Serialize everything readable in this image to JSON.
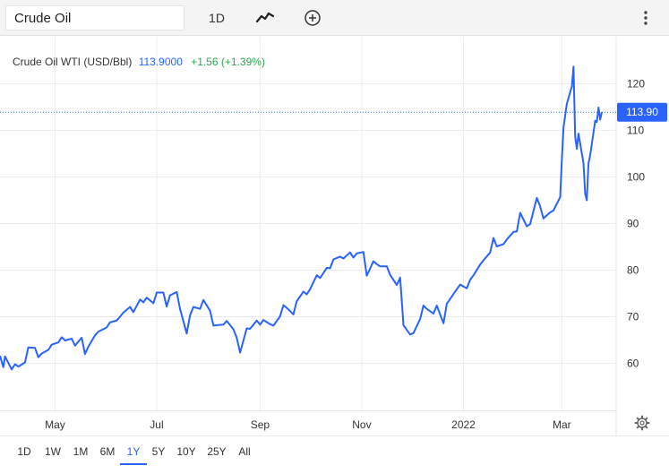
{
  "toolbar": {
    "symbol_value": "Crude Oil",
    "interval_label": "1D",
    "chart_style_icon": "line-chart-icon",
    "compare_icon": "plus-circle-icon",
    "menu_icon": "more-vertical-icon"
  },
  "legend": {
    "name": "Crude Oil WTI (USD/Bbl)",
    "price": "113.9000",
    "change": "+1.56 (+1.39%)"
  },
  "price_tag": "113.90",
  "settings_icon": "gear-icon",
  "ranges": [
    "1D",
    "1W",
    "1M",
    "6M",
    "1Y",
    "5Y",
    "10Y",
    "25Y",
    "All"
  ],
  "active_range": "1Y",
  "colors": {
    "line": "#2962ff",
    "change_positive": "#2fa84f",
    "price_tag_bg": "#2962ff"
  },
  "chart_data": {
    "type": "line",
    "title": "",
    "xlabel": "",
    "ylabel": "",
    "ylim": [
      50,
      125
    ],
    "yticks": [
      60,
      70,
      80,
      90,
      100,
      110,
      120
    ],
    "xticks": [
      {
        "date": "2021-05-01",
        "label": "May"
      },
      {
        "date": "2021-07-01",
        "label": "Jul"
      },
      {
        "date": "2021-09-01",
        "label": "Sep"
      },
      {
        "date": "2021-11-01",
        "label": "Nov"
      },
      {
        "date": "2022-01-01",
        "label": "2022"
      },
      {
        "date": "2022-03-01",
        "label": "Mar"
      }
    ],
    "xrange": [
      "2021-03-29",
      "2022-03-25"
    ],
    "grid": true,
    "last_value": 113.9,
    "series": [
      {
        "points": [
          [
            "2021-03-29",
            61.6
          ],
          [
            "2021-03-31",
            59.2
          ],
          [
            "2021-04-01",
            61.5
          ],
          [
            "2021-04-05",
            58.7
          ],
          [
            "2021-04-07",
            59.8
          ],
          [
            "2021-04-09",
            59.3
          ],
          [
            "2021-04-13",
            60.2
          ],
          [
            "2021-04-15",
            63.4
          ],
          [
            "2021-04-19",
            63.3
          ],
          [
            "2021-04-21",
            61.3
          ],
          [
            "2021-04-23",
            62.1
          ],
          [
            "2021-04-27",
            62.9
          ],
          [
            "2021-04-29",
            64.0
          ],
          [
            "2021-05-03",
            64.5
          ],
          [
            "2021-05-05",
            65.6
          ],
          [
            "2021-05-07",
            64.9
          ],
          [
            "2021-05-11",
            65.3
          ],
          [
            "2021-05-13",
            63.8
          ],
          [
            "2021-05-17",
            65.5
          ],
          [
            "2021-05-19",
            62.0
          ],
          [
            "2021-05-21",
            63.6
          ],
          [
            "2021-05-25",
            66.0
          ],
          [
            "2021-05-27",
            66.8
          ],
          [
            "2021-06-01",
            67.7
          ],
          [
            "2021-06-03",
            68.8
          ],
          [
            "2021-06-07",
            69.2
          ],
          [
            "2021-06-09",
            70.0
          ],
          [
            "2021-06-11",
            70.9
          ],
          [
            "2021-06-15",
            72.1
          ],
          [
            "2021-06-17",
            71.0
          ],
          [
            "2021-06-21",
            73.7
          ],
          [
            "2021-06-23",
            73.1
          ],
          [
            "2021-06-25",
            74.1
          ],
          [
            "2021-06-29",
            72.9
          ],
          [
            "2021-07-01",
            75.2
          ],
          [
            "2021-07-05",
            75.2
          ],
          [
            "2021-07-07",
            72.2
          ],
          [
            "2021-07-09",
            74.6
          ],
          [
            "2021-07-13",
            75.3
          ],
          [
            "2021-07-15",
            71.7
          ],
          [
            "2021-07-19",
            66.4
          ],
          [
            "2021-07-21",
            70.3
          ],
          [
            "2021-07-23",
            72.1
          ],
          [
            "2021-07-27",
            71.7
          ],
          [
            "2021-07-29",
            73.6
          ],
          [
            "2021-08-02",
            71.3
          ],
          [
            "2021-08-04",
            68.1
          ],
          [
            "2021-08-06",
            68.2
          ],
          [
            "2021-08-10",
            68.3
          ],
          [
            "2021-08-12",
            69.1
          ],
          [
            "2021-08-16",
            67.3
          ],
          [
            "2021-08-18",
            65.5
          ],
          [
            "2021-08-20",
            62.3
          ],
          [
            "2021-08-24",
            67.5
          ],
          [
            "2021-08-26",
            67.4
          ],
          [
            "2021-08-30",
            69.2
          ],
          [
            "2021-09-01",
            68.3
          ],
          [
            "2021-09-03",
            69.3
          ],
          [
            "2021-09-07",
            68.4
          ],
          [
            "2021-09-09",
            68.1
          ],
          [
            "2021-09-13",
            70.1
          ],
          [
            "2021-09-15",
            72.5
          ],
          [
            "2021-09-17",
            71.9
          ],
          [
            "2021-09-21",
            70.5
          ],
          [
            "2021-09-23",
            73.3
          ],
          [
            "2021-09-27",
            75.4
          ],
          [
            "2021-09-29",
            74.8
          ],
          [
            "2021-10-01",
            75.9
          ],
          [
            "2021-10-05",
            78.9
          ],
          [
            "2021-10-07",
            78.3
          ],
          [
            "2021-10-11",
            80.5
          ],
          [
            "2021-10-13",
            80.4
          ],
          [
            "2021-10-15",
            82.3
          ],
          [
            "2021-10-19",
            82.9
          ],
          [
            "2021-10-21",
            82.5
          ],
          [
            "2021-10-25",
            83.8
          ],
          [
            "2021-10-27",
            82.7
          ],
          [
            "2021-10-29",
            83.6
          ],
          [
            "2021-11-02",
            83.9
          ],
          [
            "2021-11-04",
            78.8
          ],
          [
            "2021-11-08",
            81.9
          ],
          [
            "2021-11-10",
            81.3
          ],
          [
            "2021-11-12",
            80.8
          ],
          [
            "2021-11-16",
            80.8
          ],
          [
            "2021-11-18",
            79.0
          ],
          [
            "2021-11-22",
            76.8
          ],
          [
            "2021-11-24",
            78.4
          ],
          [
            "2021-11-26",
            68.2
          ],
          [
            "2021-11-30",
            66.2
          ],
          [
            "2021-12-02",
            66.5
          ],
          [
            "2021-12-06",
            69.5
          ],
          [
            "2021-12-08",
            72.4
          ],
          [
            "2021-12-10",
            71.7
          ],
          [
            "2021-12-14",
            70.7
          ],
          [
            "2021-12-16",
            72.4
          ],
          [
            "2021-12-20",
            68.6
          ],
          [
            "2021-12-22",
            72.8
          ],
          [
            "2021-12-24",
            73.8
          ],
          [
            "2021-12-28",
            75.9
          ],
          [
            "2021-12-30",
            76.9
          ],
          [
            "2022-01-03",
            76.1
          ],
          [
            "2022-01-05",
            77.9
          ],
          [
            "2022-01-07",
            78.9
          ],
          [
            "2022-01-11",
            81.2
          ],
          [
            "2022-01-13",
            82.1
          ],
          [
            "2022-01-17",
            83.8
          ],
          [
            "2022-01-19",
            86.9
          ],
          [
            "2022-01-21",
            85.1
          ],
          [
            "2022-01-25",
            85.6
          ],
          [
            "2022-01-27",
            86.6
          ],
          [
            "2022-01-31",
            88.2
          ],
          [
            "2022-02-02",
            88.3
          ],
          [
            "2022-02-04",
            92.3
          ],
          [
            "2022-02-08",
            89.4
          ],
          [
            "2022-02-10",
            89.9
          ],
          [
            "2022-02-14",
            95.5
          ],
          [
            "2022-02-16",
            93.7
          ],
          [
            "2022-02-18",
            91.1
          ],
          [
            "2022-02-22",
            92.4
          ],
          [
            "2022-02-24",
            92.8
          ],
          [
            "2022-02-28",
            95.7
          ],
          [
            "2022-03-01",
            103.4
          ],
          [
            "2022-03-02",
            110.6
          ],
          [
            "2022-03-04",
            115.7
          ],
          [
            "2022-03-07",
            119.4
          ],
          [
            "2022-03-08",
            123.7
          ],
          [
            "2022-03-09",
            108.7
          ],
          [
            "2022-03-10",
            106.0
          ],
          [
            "2022-03-11",
            109.3
          ],
          [
            "2022-03-14",
            103.0
          ],
          [
            "2022-03-15",
            96.4
          ],
          [
            "2022-03-16",
            95.0
          ],
          [
            "2022-03-17",
            102.9
          ],
          [
            "2022-03-18",
            104.7
          ],
          [
            "2022-03-21",
            112.1
          ],
          [
            "2022-03-22",
            111.8
          ],
          [
            "2022-03-23",
            114.9
          ],
          [
            "2022-03-24",
            112.3
          ],
          [
            "2022-03-25",
            113.9
          ]
        ]
      }
    ]
  }
}
